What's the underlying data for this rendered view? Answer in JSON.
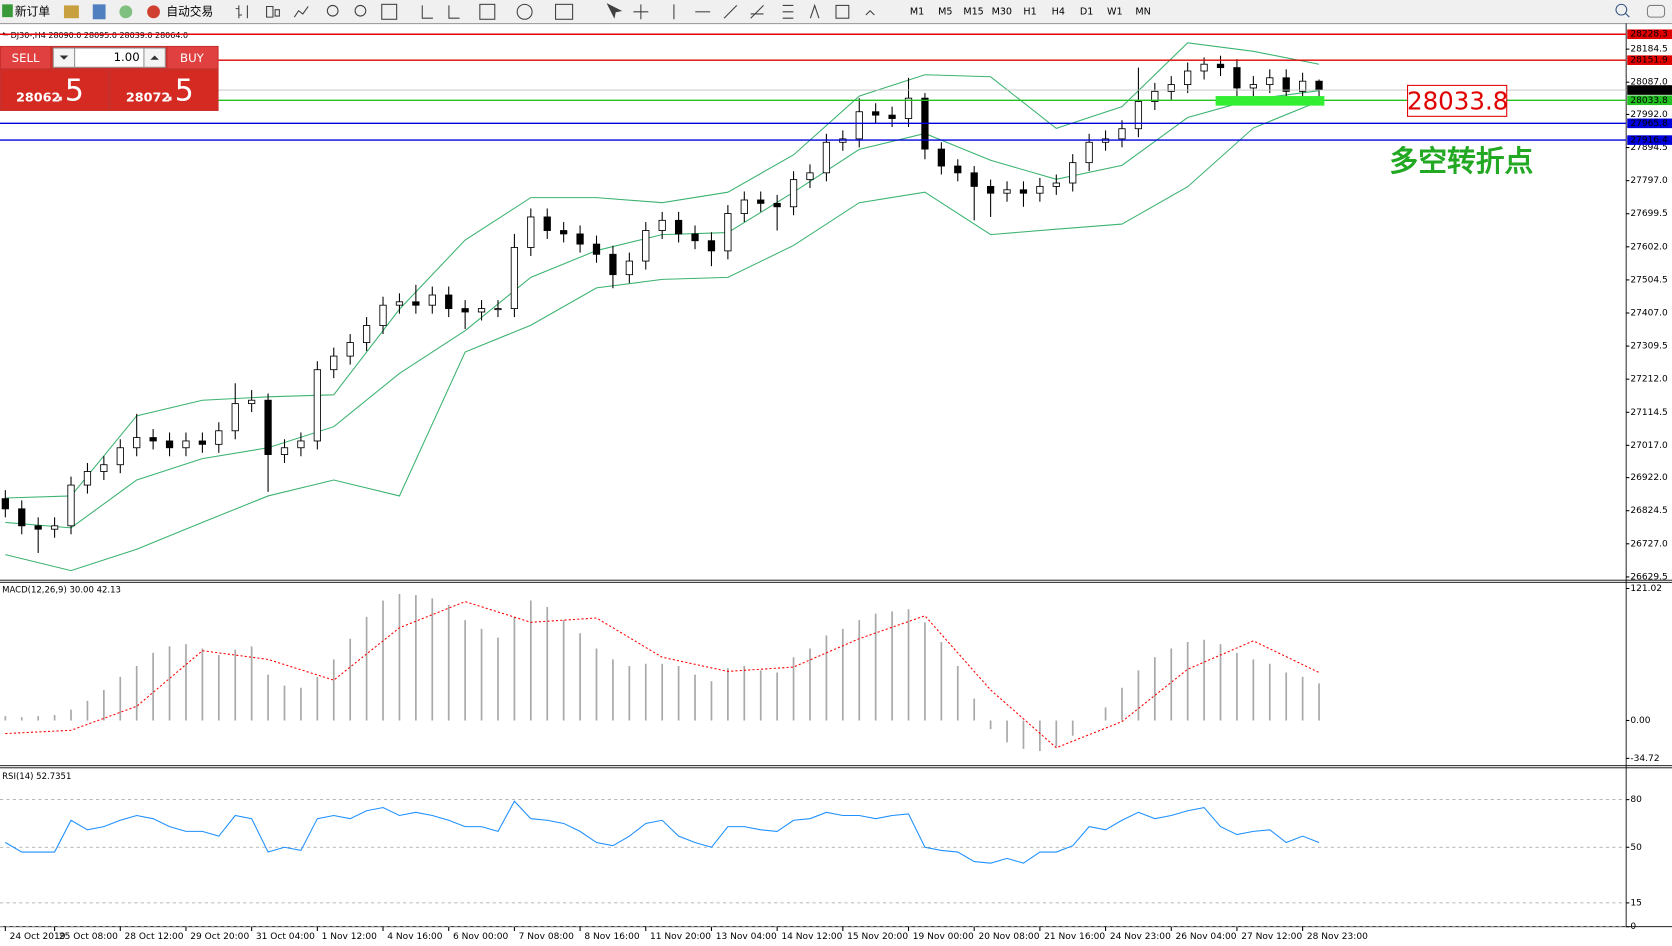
{
  "toolbar": {
    "new_order": "新订单",
    "auto_trading": "自动交易",
    "timeframes": [
      "M1",
      "M5",
      "M15",
      "M30",
      "H1",
      "H4",
      "D1",
      "W1",
      "MN"
    ]
  },
  "trade_panel": {
    "sell": "SELL",
    "lot": "1.00",
    "buy": "BUY",
    "bid_main": "28062",
    "bid_frac": ".5",
    "ask_main": "28072",
    "ask_frac": ".5"
  },
  "chart_data": [
    {
      "type": "candlestick",
      "title": "DJ30-,H4 28090.0 28095.0 28039.0 28064.0",
      "categories": [
        "24 Oct 2019",
        null,
        null,
        "25 Oct 08:00",
        null,
        null,
        null,
        "28 Oct 12:00",
        null,
        null,
        null,
        "29 Oct 20:00",
        null,
        null,
        null,
        "31 Oct 04:00",
        null,
        null,
        null,
        "1 Nov 12:00",
        null,
        null,
        null,
        "4 Nov 16:00",
        null,
        null,
        null,
        "6 Nov 00:00",
        null,
        null,
        null,
        "7 Nov 08:00",
        null,
        null,
        null,
        "8 Nov 16:00",
        null,
        null,
        null,
        "11 Nov 20:00",
        null,
        null,
        null,
        "13 Nov 04:00",
        null,
        null,
        null,
        "14 Nov 12:00",
        null,
        null,
        null,
        "15 Nov 20:00",
        null,
        null,
        null,
        "19 Nov 00:00",
        null,
        null,
        null,
        "20 Nov 08:00",
        null,
        null,
        null,
        "21 Nov 16:00",
        null,
        null,
        null,
        "24 Nov 23:00",
        null,
        null,
        null,
        "26 Nov 04:00",
        null,
        null,
        null,
        "27 Nov 12:00",
        null,
        null,
        null,
        "28 Nov 23:00",
        null
      ],
      "open": [
        26860,
        26830,
        26780,
        26770,
        26780,
        26900,
        26940,
        26960,
        27010,
        27040,
        27030,
        27010,
        27030,
        27020,
        27060,
        27140,
        27150,
        26990,
        27010,
        27030,
        27240,
        27280,
        27320,
        27370,
        27430,
        27440,
        27430,
        27460,
        27420,
        27410,
        27420,
        27420,
        27600,
        27690,
        27650,
        27640,
        27610,
        27580,
        27520,
        27560,
        27650,
        27680,
        27640,
        27620,
        27590,
        27700,
        27740,
        27730,
        27720,
        27800,
        27820,
        27910,
        27920,
        28000,
        27990,
        27980,
        28040,
        27890,
        27840,
        27820,
        27780,
        27760,
        27770,
        27760,
        27780,
        27790,
        27850,
        27910,
        27920,
        27950,
        28030,
        28060,
        28080,
        28120,
        28140,
        28130,
        28070,
        28080,
        28100,
        28060,
        28090
      ],
      "high": [
        26885,
        26855,
        26805,
        26805,
        26925,
        26965,
        26985,
        27035,
        27110,
        27065,
        27055,
        27055,
        27055,
        27085,
        27200,
        27180,
        27170,
        27035,
        27055,
        27265,
        27305,
        27345,
        27395,
        27455,
        27465,
        27490,
        27485,
        27485,
        27445,
        27445,
        27445,
        27640,
        27715,
        27715,
        27675,
        27665,
        27635,
        27605,
        27585,
        27675,
        27705,
        27705,
        27665,
        27645,
        27725,
        27765,
        27765,
        27755,
        27825,
        27845,
        27935,
        27945,
        28040,
        28025,
        28015,
        28100,
        28055,
        27910,
        27860,
        27840,
        27800,
        27795,
        27795,
        27805,
        27815,
        27875,
        27935,
        27945,
        27975,
        28130,
        28085,
        28105,
        28145,
        28160,
        28165,
        28155,
        28105,
        28125,
        28125,
        28115,
        28095
      ],
      "low": [
        26805,
        26755,
        26700,
        26745,
        26755,
        26875,
        26915,
        26935,
        26985,
        27005,
        26985,
        26985,
        26995,
        26995,
        27035,
        27115,
        26880,
        26965,
        26985,
        27005,
        27215,
        27255,
        27295,
        27345,
        27405,
        27405,
        27405,
        27395,
        27360,
        27385,
        27395,
        27395,
        27575,
        27625,
        27615,
        27585,
        27555,
        27480,
        27495,
        27535,
        27625,
        27615,
        27595,
        27545,
        27565,
        27675,
        27705,
        27650,
        27695,
        27775,
        27795,
        27885,
        27895,
        27965,
        27955,
        27955,
        27860,
        27815,
        27795,
        27680,
        27690,
        27735,
        27720,
        27735,
        27755,
        27765,
        27825,
        27885,
        27895,
        27925,
        28005,
        28035,
        28055,
        28095,
        28105,
        28045,
        28045,
        28055,
        28035,
        28035,
        28039
      ],
      "close": [
        26830,
        26780,
        26770,
        26780,
        26900,
        26940,
        26960,
        27010,
        27040,
        27030,
        27010,
        27030,
        27020,
        27060,
        27140,
        27150,
        26990,
        27010,
        27030,
        27240,
        27280,
        27320,
        27370,
        27430,
        27440,
        27430,
        27460,
        27420,
        27410,
        27420,
        27420,
        27600,
        27690,
        27650,
        27640,
        27610,
        27580,
        27520,
        27560,
        27650,
        27680,
        27640,
        27620,
        27590,
        27700,
        27740,
        27730,
        27720,
        27800,
        27820,
        27910,
        27920,
        28000,
        27990,
        27980,
        28040,
        27890,
        27840,
        27820,
        27780,
        27760,
        27770,
        27760,
        27780,
        27790,
        27850,
        27910,
        27920,
        27950,
        28030,
        28060,
        28080,
        28120,
        28140,
        28130,
        28070,
        28080,
        28100,
        28060,
        28090,
        28064
      ],
      "up_color": "#ffffff",
      "down_color": "#000000",
      "series": [
        {
          "color": "#3cb371",
          "x": [
            0,
            4,
            8,
            12,
            16,
            20,
            24,
            28,
            32,
            36,
            40,
            44,
            48,
            52,
            56,
            60,
            64,
            68,
            72,
            76,
            80
          ],
          "values": [
            26862,
            26868,
            27104,
            27150,
            27160,
            27166,
            27418,
            27622,
            27747,
            27747,
            27732,
            27763,
            27873,
            28046,
            28109,
            28103,
            27951,
            28015,
            28203,
            28178,
            28140
          ]
        },
        {
          "color": "#3cb371",
          "x": [
            0,
            4,
            8,
            12,
            16,
            20,
            24,
            28,
            32,
            36,
            40,
            44,
            48,
            52,
            56,
            60,
            64,
            68,
            72,
            76,
            80
          ],
          "values": [
            26790,
            26774,
            26915,
            26978,
            27010,
            27072,
            27229,
            27355,
            27512,
            27591,
            27638,
            27644,
            27763,
            27889,
            27936,
            27857,
            27801,
            27842,
            27983,
            28037,
            28062
          ]
        },
        {
          "color": "#3cb371",
          "x": [
            0,
            4,
            8,
            12,
            16,
            20,
            24,
            28,
            32,
            36,
            40,
            44,
            48,
            52,
            56,
            60,
            64,
            68,
            72,
            76,
            80
          ],
          "values": [
            26695,
            26648,
            26711,
            26790,
            26868,
            26915,
            26868,
            27292,
            27371,
            27481,
            27506,
            27512,
            27606,
            27732,
            27763,
            27638,
            27654,
            27669,
            27779,
            27952,
            28031
          ]
        }
      ],
      "hlines": [
        {
          "value": 28228.3,
          "color": "#e00000"
        },
        {
          "value": 28151.9,
          "color": "#e00000"
        },
        {
          "value": 28064,
          "label": "28064.0",
          "color": "#000000"
        },
        {
          "value": 28033.8,
          "color": "#22c022"
        },
        {
          "value": 27965.8,
          "color": "#0000dd"
        },
        {
          "value": 27916.4,
          "color": "#0000dd"
        }
      ],
      "annotation": "多空转折点",
      "ylim": [
        26623,
        28241
      ],
      "yticks": [
        28184.5,
        {
          "value": 28087,
          "label": "28087.0"
        },
        {
          "value": 27992,
          "label": "27992.0"
        },
        27894.5,
        {
          "value": 27797,
          "label": "27797.0"
        },
        27699.5,
        {
          "value": 27602,
          "label": "27602.0"
        },
        27504.5,
        {
          "value": 27407,
          "label": "27407.0"
        },
        27309.5,
        {
          "value": 27212,
          "label": "27212.0"
        },
        27114.5,
        {
          "value": 27017,
          "label": "27017.0"
        },
        {
          "value": 26922,
          "label": "26922.0"
        },
        26824.5,
        {
          "value": 26727,
          "label": "26727.0"
        },
        26629.5
      ]
    },
    {
      "type": "macd",
      "title": "MACD(12,26,9) 30.00 42.13",
      "color": "#a9a9a9",
      "values": [
        4,
        3,
        4,
        5,
        10,
        18,
        28,
        40,
        50,
        62,
        68,
        70,
        66,
        60,
        65,
        68,
        42,
        32,
        30,
        40,
        56,
        75,
        95,
        110,
        116,
        115,
        112,
        106,
        92,
        84,
        76,
        95,
        110,
        104,
        92,
        80,
        66,
        56,
        50,
        52,
        52,
        50,
        42,
        36,
        48,
        50,
        46,
        44,
        58,
        66,
        78,
        84,
        92,
        98,
        100,
        102,
        90,
        72,
        50,
        20,
        -8,
        -20,
        -26,
        -28,
        -24,
        -14,
        0,
        12,
        30,
        46,
        58,
        66,
        72,
        74,
        70,
        62,
        56,
        52,
        44,
        40,
        34
      ],
      "signal": {
        "color": "#ff0000",
        "x": [
          0,
          4,
          8,
          12,
          16,
          20,
          24,
          28,
          32,
          36,
          40,
          44,
          48,
          52,
          56,
          60,
          64,
          68,
          72,
          76,
          80
        ],
        "values": [
          -12,
          -9,
          13,
          64,
          56,
          37,
          85,
          109,
          90,
          94,
          58,
          45,
          49,
          75,
          96,
          28,
          -25,
          -1,
          47,
          73,
          44
        ]
      },
      "ylim": [
        -39.5,
        126.7
      ],
      "yticks": [
        121.02,
        {
          "value": 0,
          "label": "0.00"
        },
        -34.72
      ]
    },
    {
      "type": "line",
      "title": "RSI(14) 52.7351",
      "color": "#1e90ff",
      "values": [
        53,
        47,
        47,
        47,
        67,
        61,
        63,
        67,
        70,
        68,
        63,
        60,
        60,
        57,
        70,
        68,
        47,
        50,
        48,
        68,
        70,
        68,
        73,
        75,
        70,
        72,
        70,
        67,
        63,
        63,
        60,
        79,
        68,
        67,
        65,
        60,
        53,
        51,
        57,
        65,
        67,
        57,
        53,
        50,
        63,
        63,
        61,
        60,
        67,
        68,
        72,
        70,
        70,
        68,
        70,
        71,
        50,
        48,
        47,
        41,
        40,
        43,
        40,
        47,
        47,
        51,
        63,
        61,
        67,
        72,
        68,
        70,
        73,
        75,
        63,
        58,
        60,
        61,
        53,
        57,
        53
      ],
      "ylim": [
        0,
        100
      ],
      "yticks": [
        80,
        50,
        15,
        0
      ],
      "grid": true
    }
  ]
}
